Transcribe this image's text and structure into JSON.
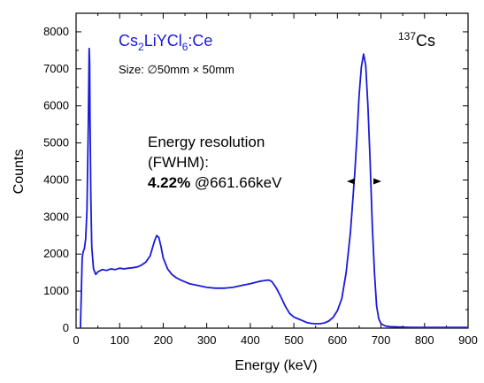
{
  "chart_data": {
    "type": "line",
    "xlabel": "Energy (keV)",
    "ylabel": "Counts",
    "xlim": [
      0,
      900
    ],
    "ylim": [
      0,
      8500
    ],
    "x_ticks": [
      0,
      100,
      200,
      300,
      400,
      500,
      600,
      700,
      800,
      900
    ],
    "y_ticks": [
      0,
      1000,
      2000,
      3000,
      4000,
      5000,
      6000,
      7000,
      8000
    ],
    "grid": false,
    "series": [
      {
        "color": "#1a1adb",
        "x": [
          10,
          14,
          16,
          19,
          22,
          25,
          28,
          30,
          31,
          32,
          34,
          36,
          40,
          45,
          50,
          60,
          70,
          80,
          90,
          100,
          110,
          120,
          130,
          140,
          150,
          160,
          170,
          175,
          180,
          185,
          190,
          195,
          200,
          210,
          220,
          230,
          240,
          260,
          280,
          300,
          320,
          340,
          360,
          380,
          400,
          420,
          430,
          440,
          445,
          450,
          460,
          470,
          480,
          490,
          500,
          510,
          520,
          530,
          540,
          550,
          560,
          570,
          580,
          590,
          600,
          610,
          620,
          630,
          640,
          645,
          650,
          655,
          660,
          665,
          670,
          675,
          680,
          685,
          690,
          695,
          700,
          710,
          720,
          740,
          760,
          780,
          800,
          850,
          900
        ],
        "y": [
          0,
          1900,
          2050,
          2150,
          2400,
          3200,
          5500,
          7550,
          7200,
          5500,
          3500,
          2200,
          1600,
          1450,
          1520,
          1580,
          1560,
          1600,
          1580,
          1620,
          1600,
          1620,
          1630,
          1650,
          1700,
          1780,
          1950,
          2150,
          2350,
          2500,
          2450,
          2200,
          1900,
          1600,
          1450,
          1360,
          1300,
          1200,
          1150,
          1100,
          1080,
          1080,
          1100,
          1150,
          1200,
          1260,
          1280,
          1300,
          1290,
          1250,
          1080,
          850,
          600,
          400,
          300,
          250,
          200,
          150,
          130,
          120,
          120,
          140,
          190,
          290,
          470,
          800,
          1500,
          2600,
          4200,
          5200,
          6300,
          7050,
          7400,
          7100,
          6000,
          4500,
          2800,
          1500,
          600,
          250,
          120,
          60,
          40,
          30,
          25,
          20,
          20,
          20,
          20
        ]
      }
    ],
    "annotations": {
      "material": "Cs2LiYCl6:Ce",
      "size": "Size: ∅50mm × 50mm",
      "isotope": "137Cs",
      "resolution_line1": "Energy resolution",
      "resolution_line2": "(FWHM):",
      "resolution_value": "4.22%",
      "resolution_energy": " @661.66keV"
    }
  },
  "colors": {
    "series": "#1a1adb",
    "axes": "#000000"
  }
}
